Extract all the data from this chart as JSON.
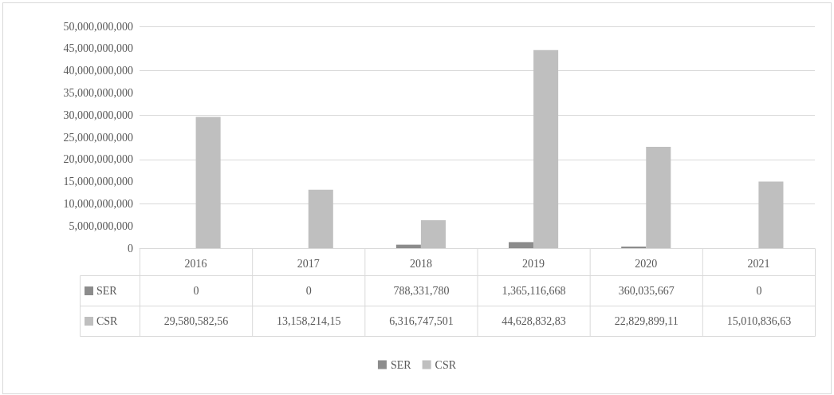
{
  "chart_data": {
    "type": "bar",
    "categories": [
      "2016",
      "2017",
      "2018",
      "2019",
      "2020",
      "2021"
    ],
    "series": [
      {
        "name": "SER",
        "color": "#8c8c8c",
        "values": [
          0,
          0,
          788331780,
          1365116668,
          360035667,
          0
        ],
        "value_labels": [
          "0",
          "0",
          "788,331,780",
          "1,365,116,668",
          "360,035,667",
          "0"
        ]
      },
      {
        "name": "CSR",
        "color": "#bfbfbf",
        "values": [
          29580582560,
          13158214150,
          6316747501,
          44628832830,
          22829899110,
          15010836630
        ],
        "value_labels": [
          "29,580,582,56",
          "13,158,214,15",
          "6,316,747,501",
          "44,628,832,83",
          "22,829,899,11",
          "15,010,836,63"
        ]
      }
    ],
    "ylim": [
      0,
      50000000000
    ],
    "yticks": [
      0,
      {
        "value": 5000000000,
        "label": "5,000,000,000"
      },
      {
        "value": 10000000000,
        "label": "10,000,000,000"
      },
      {
        "value": 15000000000,
        "label": "15,000,000,000"
      },
      {
        "value": 20000000000,
        "label": "20,000,000,000"
      },
      {
        "value": 25000000000,
        "label": "25,000,000,000"
      },
      {
        "value": 30000000000,
        "label": "30,000,000,000"
      },
      {
        "value": 35000000000,
        "label": "35,000,000,000"
      },
      {
        "value": 40000000000,
        "label": "40,000,000,000"
      },
      {
        "value": 45000000000,
        "label": "45,000,000,000"
      },
      {
        "value": 50000000000,
        "label": "50,000,000,000"
      }
    ],
    "grid": "y",
    "legend": "bottom"
  }
}
